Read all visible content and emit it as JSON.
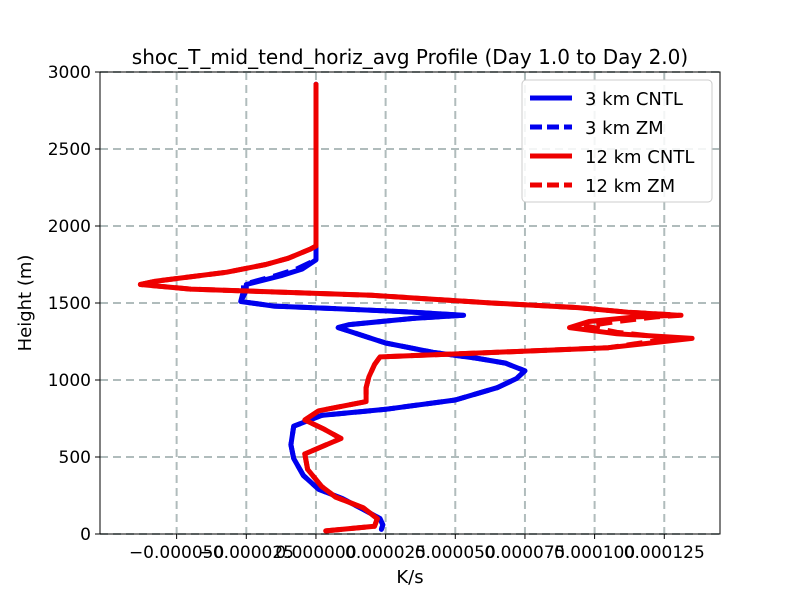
{
  "chart_data": {
    "type": "line",
    "title": "shoc_T_mid_tend_horiz_avg Profile (Day 1.0 to Day 2.0)",
    "xlabel": "K/s",
    "ylabel": "Height (m)",
    "xlim": [
      -7.75e-05,
      0.000145
    ],
    "ylim": [
      0,
      3000
    ],
    "grid": true,
    "legend_position": "top-right",
    "xticks": [
      {
        "value": -5e-05,
        "label": "−0.000050"
      },
      {
        "value": -2.5e-05,
        "label": "−0.000025"
      },
      {
        "value": 0.0,
        "label": "0.000000"
      },
      {
        "value": 2.5e-05,
        "label": "0.000025"
      },
      {
        "value": 5e-05,
        "label": "0.000050"
      },
      {
        "value": 7.5e-05,
        "label": "0.000075"
      },
      {
        "value": 0.0001,
        "label": "0.000100"
      },
      {
        "value": 0.000125,
        "label": "0.000125"
      }
    ],
    "yticks": [
      {
        "value": 0,
        "label": "0"
      },
      {
        "value": 500,
        "label": "500"
      },
      {
        "value": 1000,
        "label": "1000"
      },
      {
        "value": 1500,
        "label": "1500"
      },
      {
        "value": 2000,
        "label": "2000"
      },
      {
        "value": 2500,
        "label": "2500"
      },
      {
        "value": 3000,
        "label": "3000"
      }
    ],
    "series": [
      {
        "name": "3 km CNTL",
        "color": "#0000ee",
        "style": "solid",
        "points": [
          [
            2.35e-05,
            30
          ],
          [
            2.4e-05,
            60
          ],
          [
            2.3e-05,
            100
          ],
          [
            1.7e-05,
            160
          ],
          [
            9.5e-06,
            230
          ],
          [
            1e-06,
            290
          ],
          [
            -4.5e-06,
            380
          ],
          [
            -8e-06,
            490
          ],
          [
            -9e-06,
            580
          ],
          [
            -8e-06,
            700
          ],
          [
            2e-06,
            770
          ],
          [
            2.5e-05,
            810
          ],
          [
            5e-05,
            870
          ],
          [
            6.5e-05,
            950
          ],
          [
            7.2e-05,
            1010
          ],
          [
            7.5e-05,
            1060
          ],
          [
            6.8e-05,
            1110
          ],
          [
            5.8e-05,
            1140
          ],
          [
            4.2e-05,
            1180
          ],
          [
            2.5e-05,
            1240
          ],
          [
            8e-06,
            1340
          ],
          [
            1.2e-05,
            1360
          ],
          [
            3.5e-05,
            1400
          ],
          [
            5.3e-05,
            1420
          ],
          [
            3.5e-05,
            1440
          ],
          [
            1.2e-05,
            1460
          ],
          [
            -1.5e-05,
            1480
          ],
          [
            -2.7e-05,
            1510
          ],
          [
            -2.5e-05,
            1580
          ],
          [
            -2.5e-05,
            1620
          ],
          [
            -1.2e-05,
            1680
          ],
          [
            -5e-06,
            1720
          ],
          [
            0.0,
            1780
          ],
          [
            0.0,
            1840
          ],
          [
            0.0,
            2000
          ],
          [
            0.0,
            2500
          ],
          [
            0.0,
            2920
          ]
        ]
      },
      {
        "name": "3 km ZM",
        "color": "#0000ee",
        "style": "dashed",
        "points": [
          [
            2.35e-05,
            30
          ],
          [
            2.4e-05,
            60
          ],
          [
            2.3e-05,
            100
          ],
          [
            1.7e-05,
            160
          ],
          [
            9.5e-06,
            230
          ],
          [
            1e-06,
            290
          ],
          [
            -4.5e-06,
            380
          ],
          [
            -8e-06,
            490
          ],
          [
            -9e-06,
            580
          ],
          [
            -8e-06,
            700
          ],
          [
            2e-06,
            770
          ],
          [
            2.5e-05,
            810
          ],
          [
            5e-05,
            870
          ],
          [
            6.5e-05,
            950
          ],
          [
            7.2e-05,
            1010
          ],
          [
            7.5e-05,
            1060
          ],
          [
            6.8e-05,
            1110
          ],
          [
            5.8e-05,
            1140
          ],
          [
            4.2e-05,
            1180
          ],
          [
            2.5e-05,
            1240
          ],
          [
            8e-06,
            1340
          ],
          [
            1.2e-05,
            1360
          ],
          [
            3.5e-05,
            1400
          ],
          [
            5.3e-05,
            1420
          ],
          [
            3.5e-05,
            1440
          ],
          [
            1.2e-05,
            1460
          ],
          [
            -1.5e-05,
            1480
          ],
          [
            -2.7e-05,
            1510
          ],
          [
            -2.6e-05,
            1580
          ],
          [
            -2.6e-05,
            1620
          ],
          [
            -1.4e-05,
            1680
          ],
          [
            -7e-06,
            1720
          ],
          [
            0.0,
            1780
          ],
          [
            0.0,
            1840
          ],
          [
            0.0,
            2000
          ],
          [
            0.0,
            2500
          ],
          [
            0.0,
            2920
          ]
        ]
      },
      {
        "name": "12 km CNTL",
        "color": "#ee0000",
        "style": "solid",
        "points": [
          [
            3.5e-06,
            20
          ],
          [
            2.1e-05,
            50
          ],
          [
            2.2e-05,
            100
          ],
          [
            1.7e-05,
            170
          ],
          [
            7e-06,
            240
          ],
          [
            2e-06,
            310
          ],
          [
            -3e-06,
            420
          ],
          [
            -4e-06,
            520
          ],
          [
            9e-06,
            620
          ],
          [
            3e-06,
            680
          ],
          [
            -4e-06,
            740
          ],
          [
            1e-06,
            800
          ],
          [
            1.8e-05,
            860
          ],
          [
            1.8e-05,
            950
          ],
          [
            1.9e-05,
            1020
          ],
          [
            2.1e-05,
            1100
          ],
          [
            2.3e-05,
            1150
          ],
          [
            6.5e-05,
            1180
          ],
          [
            0.000105,
            1210
          ],
          [
            0.000135,
            1270
          ],
          [
            0.000108,
            1300
          ],
          [
            9.1e-05,
            1340
          ],
          [
            9.8e-05,
            1380
          ],
          [
            0.000115,
            1410
          ],
          [
            0.00013,
            1420
          ],
          [
            0.000112,
            1440
          ],
          [
            9.4e-05,
            1470
          ],
          [
            6.3e-05,
            1500
          ],
          [
            2e-05,
            1550
          ],
          [
            -4.5e-05,
            1590
          ],
          [
            -6.3e-05,
            1620
          ],
          [
            -5.8e-05,
            1640
          ],
          [
            -3.2e-05,
            1700
          ],
          [
            -1.8e-05,
            1750
          ],
          [
            -1e-05,
            1790
          ],
          [
            -2e-06,
            1850
          ],
          [
            0.0,
            1870
          ],
          [
            0.0,
            2000
          ],
          [
            0.0,
            2500
          ],
          [
            0.0,
            2920
          ]
        ]
      },
      {
        "name": "12 km ZM",
        "color": "#ee0000",
        "style": "dashed",
        "points": [
          [
            3.5e-06,
            20
          ],
          [
            2.1e-05,
            50
          ],
          [
            2.2e-05,
            100
          ],
          [
            1.7e-05,
            170
          ],
          [
            7e-06,
            240
          ],
          [
            2e-06,
            310
          ],
          [
            -3e-06,
            420
          ],
          [
            -4e-06,
            520
          ],
          [
            9e-06,
            620
          ],
          [
            3e-06,
            680
          ],
          [
            -4e-06,
            740
          ],
          [
            1e-06,
            800
          ],
          [
            1.8e-05,
            860
          ],
          [
            1.8e-05,
            950
          ],
          [
            1.9e-05,
            1020
          ],
          [
            2.1e-05,
            1100
          ],
          [
            2.3e-05,
            1150
          ],
          [
            6.5e-05,
            1180
          ],
          [
            0.000105,
            1210
          ],
          [
            0.000128,
            1270
          ],
          [
            0.000108,
            1310
          ],
          [
            9.7e-05,
            1350
          ],
          [
            0.000108,
            1380
          ],
          [
            0.000122,
            1410
          ],
          [
            0.000131,
            1420
          ],
          [
            0.000112,
            1440
          ],
          [
            9.4e-05,
            1470
          ],
          [
            6.3e-05,
            1500
          ],
          [
            2e-05,
            1550
          ],
          [
            -4.5e-05,
            1590
          ],
          [
            -6.3e-05,
            1620
          ],
          [
            -5.8e-05,
            1640
          ],
          [
            -3.2e-05,
            1700
          ],
          [
            -1.8e-05,
            1750
          ],
          [
            -1e-05,
            1790
          ],
          [
            -2e-06,
            1850
          ],
          [
            0.0,
            1870
          ],
          [
            0.0,
            2000
          ],
          [
            0.0,
            2500
          ],
          [
            0.0,
            2920
          ]
        ]
      }
    ]
  }
}
